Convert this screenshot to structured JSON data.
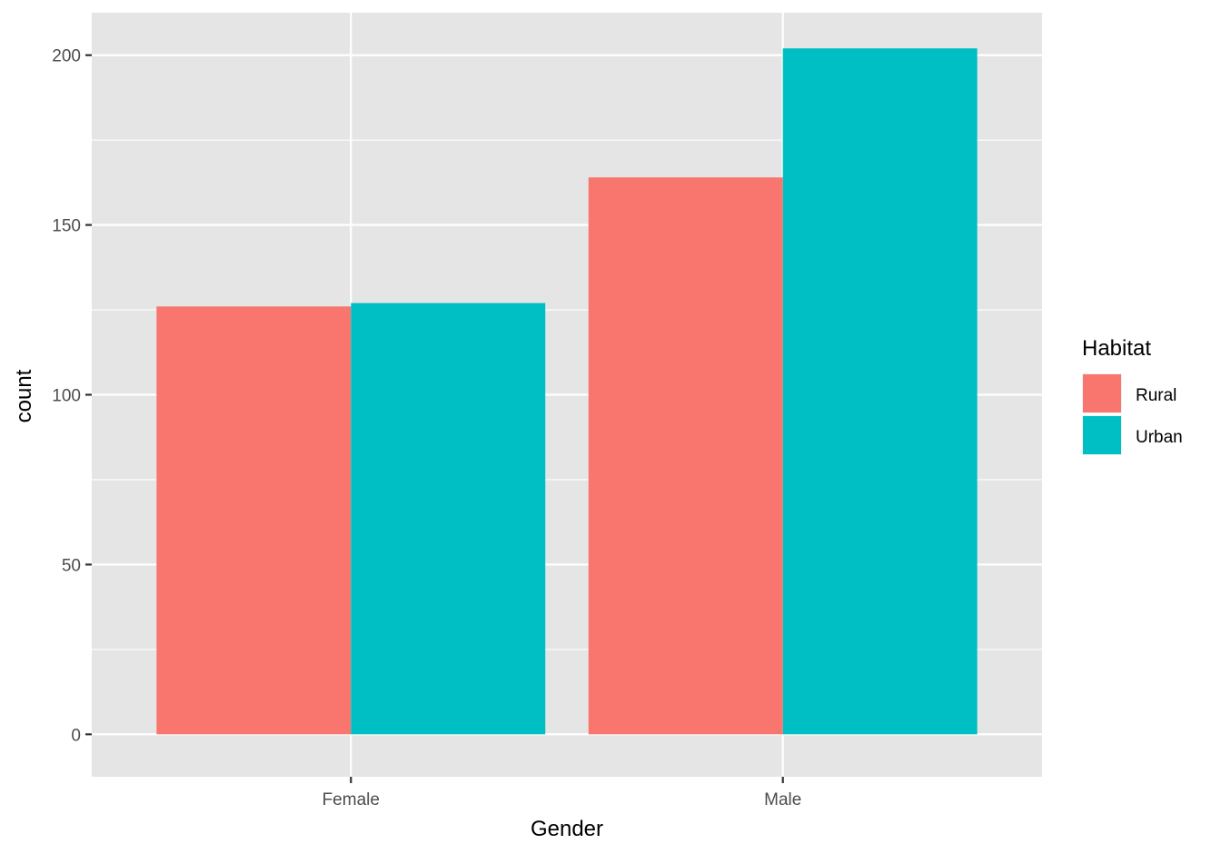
{
  "chart_data": {
    "type": "bar",
    "xlabel": "Gender",
    "ylabel": "count",
    "categories": [
      "Female",
      "Male"
    ],
    "series": [
      {
        "name": "Rural",
        "values": [
          126,
          164
        ],
        "color": "#F8766D"
      },
      {
        "name": "Urban",
        "values": [
          127,
          202
        ],
        "color": "#00BFC4"
      }
    ],
    "ylim": [
      -12.5,
      212.5
    ],
    "yticks": [
      0,
      50,
      100,
      150,
      200
    ],
    "grid": true,
    "legend": {
      "title": "Habitat",
      "position": "right",
      "items": [
        "Rural",
        "Urban"
      ]
    },
    "colors": {
      "panel_background": "#E5E5E5",
      "grid_line": "#FFFFFF",
      "tick_text": "#4D4D4D"
    }
  }
}
